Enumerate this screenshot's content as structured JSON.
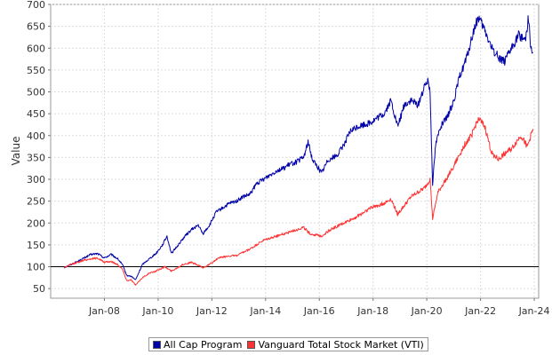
{
  "chart_data": {
    "type": "line",
    "title": "",
    "xlabel": "",
    "ylabel": "Value",
    "ylim": [
      28,
      700
    ],
    "xlim": [
      "2006-01-01",
      "2024-03-01"
    ],
    "yticks": [
      50,
      100,
      150,
      200,
      250,
      300,
      350,
      400,
      450,
      500,
      550,
      600,
      650,
      700
    ],
    "xticks": [
      {
        "date": "2008-01-01",
        "label": "Jan-08"
      },
      {
        "date": "2010-01-01",
        "label": "Jan-10"
      },
      {
        "date": "2012-01-01",
        "label": "Jan-12"
      },
      {
        "date": "2014-01-01",
        "label": "Jan-14"
      },
      {
        "date": "2016-01-01",
        "label": "Jan-16"
      },
      {
        "date": "2018-01-01",
        "label": "Jan-18"
      },
      {
        "date": "2020-01-01",
        "label": "Jan-20"
      },
      {
        "date": "2022-01-01",
        "label": "Jan-22"
      },
      {
        "date": "2024-01-01",
        "label": "Jan-24"
      }
    ],
    "grid": true,
    "legend_position": "bottom",
    "reference_line": {
      "y": 100,
      "color": "#000000"
    },
    "series": [
      {
        "name": "All Cap Program",
        "color": "#0000aa",
        "points": [
          [
            "2006-07-01",
            98
          ],
          [
            "2006-10-01",
            105
          ],
          [
            "2007-01-01",
            112
          ],
          [
            "2007-04-01",
            120
          ],
          [
            "2007-07-01",
            128
          ],
          [
            "2007-10-01",
            130
          ],
          [
            "2008-01-01",
            120
          ],
          [
            "2008-04-01",
            128
          ],
          [
            "2008-07-01",
            118
          ],
          [
            "2008-09-01",
            105
          ],
          [
            "2008-11-01",
            80
          ],
          [
            "2009-01-01",
            78
          ],
          [
            "2009-03-01",
            70
          ],
          [
            "2009-06-01",
            105
          ],
          [
            "2009-09-01",
            118
          ],
          [
            "2009-12-01",
            130
          ],
          [
            "2010-03-01",
            150
          ],
          [
            "2010-05-01",
            170
          ],
          [
            "2010-07-01",
            130
          ],
          [
            "2010-10-01",
            150
          ],
          [
            "2011-01-01",
            170
          ],
          [
            "2011-04-01",
            185
          ],
          [
            "2011-07-01",
            195
          ],
          [
            "2011-09-01",
            175
          ],
          [
            "2011-12-01",
            195
          ],
          [
            "2012-03-01",
            225
          ],
          [
            "2012-06-01",
            235
          ],
          [
            "2012-09-01",
            245
          ],
          [
            "2012-12-01",
            250
          ],
          [
            "2013-03-01",
            260
          ],
          [
            "2013-06-01",
            265
          ],
          [
            "2013-09-01",
            290
          ],
          [
            "2013-12-01",
            300
          ],
          [
            "2014-03-01",
            310
          ],
          [
            "2014-06-01",
            320
          ],
          [
            "2014-09-01",
            325
          ],
          [
            "2014-12-01",
            335
          ],
          [
            "2015-03-01",
            340
          ],
          [
            "2015-06-01",
            350
          ],
          [
            "2015-08-01",
            385
          ],
          [
            "2015-10-01",
            345
          ],
          [
            "2016-02-01",
            315
          ],
          [
            "2016-05-01",
            345
          ],
          [
            "2016-09-01",
            355
          ],
          [
            "2016-12-01",
            380
          ],
          [
            "2017-03-01",
            410
          ],
          [
            "2017-06-01",
            420
          ],
          [
            "2017-09-01",
            425
          ],
          [
            "2017-12-01",
            430
          ],
          [
            "2018-03-01",
            440
          ],
          [
            "2018-06-01",
            450
          ],
          [
            "2018-09-01",
            480
          ],
          [
            "2018-12-01",
            420
          ],
          [
            "2019-03-01",
            470
          ],
          [
            "2019-06-01",
            480
          ],
          [
            "2019-09-01",
            470
          ],
          [
            "2019-12-01",
            510
          ],
          [
            "2020-01-15",
            530
          ],
          [
            "2020-02-15",
            500
          ],
          [
            "2020-03-20",
            290
          ],
          [
            "2020-05-01",
            380
          ],
          [
            "2020-07-01",
            420
          ],
          [
            "2020-10-01",
            440
          ],
          [
            "2021-01-01",
            480
          ],
          [
            "2021-04-01",
            540
          ],
          [
            "2021-07-01",
            580
          ],
          [
            "2021-10-01",
            640
          ],
          [
            "2021-12-01",
            670
          ],
          [
            "2022-03-01",
            640
          ],
          [
            "2022-06-01",
            600
          ],
          [
            "2022-09-01",
            580
          ],
          [
            "2022-12-01",
            570
          ],
          [
            "2023-03-01",
            600
          ],
          [
            "2023-06-01",
            630
          ],
          [
            "2023-09-01",
            620
          ],
          [
            "2023-10-15",
            670
          ],
          [
            "2023-11-15",
            600
          ],
          [
            "2023-12-15",
            590
          ]
        ]
      },
      {
        "name": "Vanguard Total Stock Market (VTI)",
        "color": "#ff3333",
        "points": [
          [
            "2006-07-01",
            98
          ],
          [
            "2006-10-01",
            105
          ],
          [
            "2007-01-01",
            110
          ],
          [
            "2007-04-01",
            115
          ],
          [
            "2007-07-01",
            118
          ],
          [
            "2007-10-01",
            120
          ],
          [
            "2008-01-01",
            110
          ],
          [
            "2008-04-01",
            112
          ],
          [
            "2008-07-01",
            105
          ],
          [
            "2008-09-01",
            95
          ],
          [
            "2008-11-01",
            68
          ],
          [
            "2009-01-01",
            70
          ],
          [
            "2009-03-01",
            58
          ],
          [
            "2009-06-01",
            75
          ],
          [
            "2009-09-01",
            85
          ],
          [
            "2009-12-01",
            90
          ],
          [
            "2010-04-01",
            100
          ],
          [
            "2010-07-01",
            90
          ],
          [
            "2010-12-01",
            105
          ],
          [
            "2011-04-01",
            110
          ],
          [
            "2011-09-01",
            98
          ],
          [
            "2011-12-01",
            105
          ],
          [
            "2012-04-01",
            120
          ],
          [
            "2012-09-01",
            125
          ],
          [
            "2012-12-01",
            125
          ],
          [
            "2013-06-01",
            140
          ],
          [
            "2013-12-01",
            160
          ],
          [
            "2014-06-01",
            170
          ],
          [
            "2014-12-01",
            180
          ],
          [
            "2015-06-01",
            190
          ],
          [
            "2015-09-01",
            175
          ],
          [
            "2016-02-01",
            170
          ],
          [
            "2016-06-01",
            185
          ],
          [
            "2016-12-01",
            200
          ],
          [
            "2017-06-01",
            215
          ],
          [
            "2017-12-01",
            235
          ],
          [
            "2018-06-01",
            245
          ],
          [
            "2018-09-01",
            255
          ],
          [
            "2018-12-01",
            220
          ],
          [
            "2019-06-01",
            260
          ],
          [
            "2019-12-01",
            280
          ],
          [
            "2020-02-15",
            300
          ],
          [
            "2020-03-20",
            210
          ],
          [
            "2020-06-01",
            270
          ],
          [
            "2020-12-01",
            320
          ],
          [
            "2021-06-01",
            380
          ],
          [
            "2021-09-01",
            400
          ],
          [
            "2021-12-01",
            440
          ],
          [
            "2022-03-01",
            420
          ],
          [
            "2022-06-01",
            360
          ],
          [
            "2022-09-01",
            345
          ],
          [
            "2022-12-01",
            360
          ],
          [
            "2023-03-01",
            370
          ],
          [
            "2023-07-01",
            400
          ],
          [
            "2023-10-01",
            375
          ],
          [
            "2023-12-15",
            415
          ]
        ]
      }
    ]
  }
}
